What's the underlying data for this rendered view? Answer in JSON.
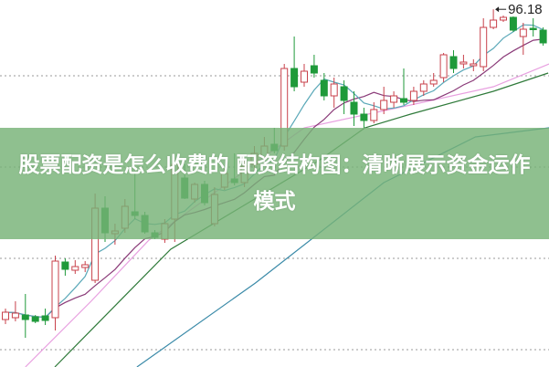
{
  "title": "股票配资是怎么收费的 配资结构图：清晰展示资金运作模式",
  "chart_data": {
    "type": "candlestick",
    "grid": "horizontal dotted",
    "ylim": [
      57.0,
      97.2
    ],
    "grid_levels": [
      88.9,
      78.9,
      68.9,
      58.9
    ],
    "high_marker": {
      "label": "96.18",
      "value": 96.18,
      "candle": 49
    },
    "colors": {
      "up": "#c8414b",
      "down": "#1f9a3a",
      "ma5": "#5aa8b8",
      "ma10": "#8a3a78",
      "pink": "#e8a0e0",
      "green": "#2f7a3a",
      "blue": "#3a8aa8"
    },
    "candles": [
      [
        62.2,
        63.0,
        63.4,
        61.7
      ],
      [
        62.4,
        62.9,
        64.2,
        62.0
      ],
      [
        62.7,
        62.2,
        65.0,
        60.2
      ],
      [
        62.5,
        62.0,
        62.7,
        61.8
      ],
      [
        62.6,
        62.1,
        63.4,
        61.6
      ],
      [
        62.4,
        68.6,
        69.2,
        61.0
      ],
      [
        68.5,
        67.7,
        68.9,
        67.0
      ],
      [
        67.6,
        68.0,
        68.7,
        67.2
      ],
      [
        67.9,
        68.2,
        68.6,
        67.4
      ],
      [
        66.5,
        74.4,
        76.0,
        66.2
      ],
      [
        74.4,
        71.7,
        75.7,
        70.7
      ],
      [
        71.6,
        71.9,
        72.7,
        70.4
      ],
      [
        72.2,
        74.6,
        75.4,
        71.7
      ],
      [
        74.0,
        73.6,
        78.2,
        73.2
      ],
      [
        73.6,
        71.8,
        74.0,
        71.6
      ],
      [
        71.7,
        71.2,
        72.0,
        71.0
      ],
      [
        71.0,
        72.7,
        73.2,
        70.6
      ],
      [
        73.2,
        79.2,
        79.4,
        70.7
      ],
      [
        77.7,
        75.5,
        79.2,
        75.4
      ],
      [
        75.4,
        77.0,
        77.2,
        75.0
      ],
      [
        77.0,
        75.0,
        77.4,
        74.7
      ],
      [
        72.7,
        75.9,
        76.7,
        72.4
      ],
      [
        76.7,
        78.2,
        78.7,
        76.4
      ],
      [
        77.6,
        77.2,
        80.4,
        76.9
      ],
      [
        77.2,
        79.0,
        79.7,
        76.7
      ],
      [
        79.2,
        80.4,
        81.2,
        78.4
      ],
      [
        80.0,
        81.2,
        82.2,
        79.7
      ],
      [
        81.4,
        80.7,
        83.2,
        80.4
      ],
      [
        81.2,
        89.7,
        90.2,
        80.7
      ],
      [
        89.7,
        87.7,
        93.2,
        87.2
      ],
      [
        88.2,
        89.4,
        90.2,
        87.7
      ],
      [
        90.0,
        89.2,
        91.2,
        88.7
      ],
      [
        88.4,
        86.7,
        89.2,
        86.2
      ],
      [
        86.7,
        88.0,
        88.7,
        85.4
      ],
      [
        87.7,
        86.2,
        88.4,
        84.7
      ],
      [
        86.0,
        84.7,
        87.2,
        83.4
      ],
      [
        84.7,
        84.0,
        85.4,
        83.2
      ],
      [
        84.0,
        85.2,
        86.0,
        83.7
      ],
      [
        85.2,
        86.2,
        87.7,
        84.7
      ],
      [
        86.0,
        86.7,
        87.2,
        85.4
      ],
      [
        86.4,
        86.0,
        89.7,
        85.7
      ],
      [
        86.2,
        87.2,
        87.7,
        85.7
      ],
      [
        87.2,
        88.0,
        88.4,
        86.7
      ],
      [
        88.0,
        88.4,
        89.2,
        87.7
      ],
      [
        88.7,
        91.2,
        91.4,
        88.2
      ],
      [
        91.0,
        89.7,
        91.7,
        89.2
      ],
      [
        90.2,
        90.4,
        91.2,
        89.7
      ],
      [
        90.0,
        90.2,
        90.7,
        89.4
      ],
      [
        89.9,
        94.2,
        95.2,
        89.4
      ],
      [
        94.2,
        95.0,
        96.18,
        94.0
      ],
      [
        95.0,
        95.3,
        95.5,
        94.8
      ],
      [
        95.3,
        93.9,
        95.4,
        93.7
      ],
      [
        93.2,
        94.0,
        94.7,
        91.2
      ],
      [
        94.1,
        94.0,
        95.2,
        93.2
      ],
      [
        93.9,
        92.5,
        94.2,
        92.2
      ]
    ],
    "candle_fields": [
      "open",
      "close",
      "high",
      "low"
    ],
    "lines": [
      {
        "key": "pink",
        "points": [
          [
            2.0,
            57.0
          ],
          [
            8.6,
            64.2
          ],
          [
            14.4,
            70.9
          ],
          [
            22.4,
            77.2
          ],
          [
            30.0,
            83.2
          ],
          [
            40.7,
            85.7
          ],
          [
            49.0,
            87.7
          ],
          [
            54.6,
            90.2
          ]
        ]
      },
      {
        "key": "green",
        "points": [
          [
            4.95,
            57.0
          ],
          [
            16.6,
            69.9
          ],
          [
            31.6,
            79.7
          ],
          [
            36.1,
            83.2
          ],
          [
            40.7,
            84.7
          ],
          [
            49.0,
            87.2
          ],
          [
            54.5,
            89.2
          ]
        ]
      },
      {
        "key": "blue",
        "points": [
          [
            13.2,
            57.0
          ],
          [
            25.1,
            66.2
          ],
          [
            38.0,
            77.2
          ],
          [
            47.2,
            82.2
          ],
          [
            54.6,
            83.2
          ]
        ]
      }
    ]
  }
}
